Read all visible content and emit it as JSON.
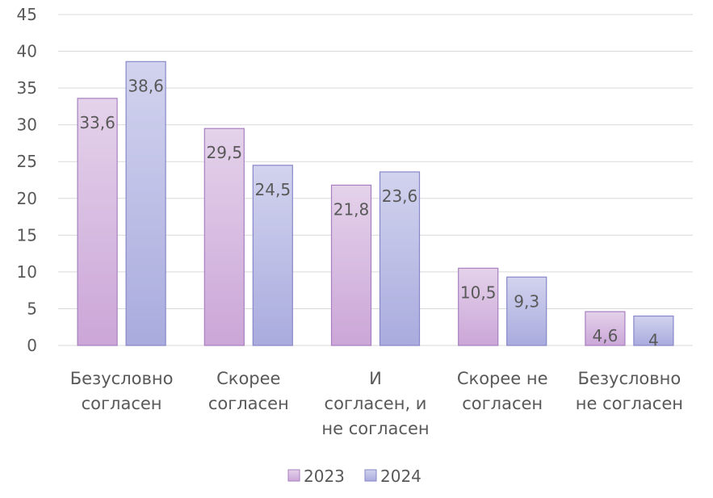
{
  "chart_data": {
    "type": "bar",
    "categories": [
      [
        "Безусловно",
        "согласен"
      ],
      [
        "Скорее",
        "согласен"
      ],
      [
        "И",
        "согласен, и",
        "не согласен"
      ],
      [
        "Скорее не",
        "согласен"
      ],
      [
        "Безусловно",
        "не согласен"
      ]
    ],
    "series": [
      {
        "name": "2023",
        "values": [
          33.6,
          29.5,
          21.8,
          10.5,
          4.6
        ],
        "labels": [
          "33,6",
          "29,5",
          "21,8",
          "10,5",
          "4,6"
        ]
      },
      {
        "name": "2024",
        "values": [
          38.6,
          24.5,
          23.6,
          9.3,
          4
        ],
        "labels": [
          "38,6",
          "24,5",
          "23,6",
          "9,3",
          "4"
        ]
      }
    ],
    "yticks": [
      "0",
      "5",
      "10",
      "15",
      "20",
      "25",
      "30",
      "35",
      "40",
      "45"
    ],
    "ylim": [
      0,
      45
    ],
    "grid": true,
    "legend_position": "bottom",
    "title": "",
    "xlabel": "",
    "ylabel": ""
  },
  "colors": {
    "series_2023_top": "#e4d2ea",
    "series_2023_bottom": "#cba6d8",
    "series_2023_border": "#a77fc0",
    "series_2024_top": "#d2d3ee",
    "series_2024_bottom": "#a9abde",
    "series_2024_border": "#8787c9",
    "grid": "#d9d9d9",
    "text": "#595959"
  }
}
